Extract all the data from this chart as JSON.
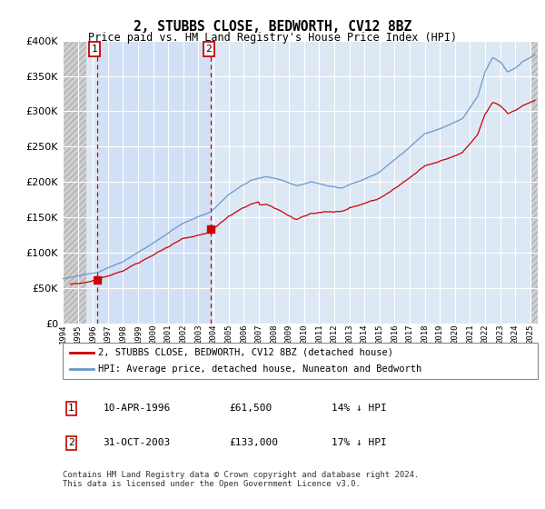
{
  "title": "2, STUBBS CLOSE, BEDWORTH, CV12 8BZ",
  "subtitle": "Price paid vs. HM Land Registry's House Price Index (HPI)",
  "ylim": [
    0,
    400000
  ],
  "xlim_start": 1994.0,
  "xlim_end": 2025.5,
  "sale1_date": 1996.27,
  "sale1_price": 61500,
  "sale2_date": 2003.83,
  "sale2_price": 133000,
  "legend_line1": "2, STUBBS CLOSE, BEDWORTH, CV12 8BZ (detached house)",
  "legend_line2": "HPI: Average price, detached house, Nuneaton and Bedworth",
  "table_row1": [
    "1",
    "10-APR-1996",
    "£61,500",
    "14% ↓ HPI"
  ],
  "table_row2": [
    "2",
    "31-OCT-2003",
    "£133,000",
    "17% ↓ HPI"
  ],
  "footnote": "Contains HM Land Registry data © Crown copyright and database right 2024.\nThis data is licensed under the Open Government Licence v3.0.",
  "hpi_color": "#6699cc",
  "price_color": "#cc0000",
  "vline_color": "#cc0000",
  "plot_bg_color": "#dde8f5",
  "hatch_color": "#c8c8c8"
}
